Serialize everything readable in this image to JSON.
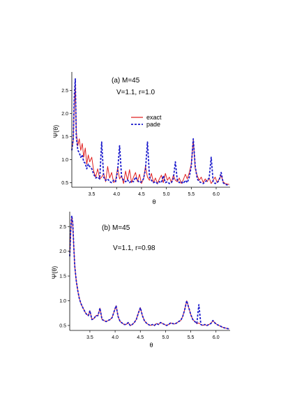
{
  "chart_data": [
    {
      "type": "line",
      "annotations": [
        "(a) M=45",
        "V=1.1, r=1.0"
      ],
      "xlabel": "θ",
      "ylabel": "Ψ(θ)",
      "xlim": [
        3.1,
        6.28
      ],
      "ylim": [
        0.4,
        2.9
      ],
      "xticks": [
        3.5,
        4.0,
        4.5,
        5.0,
        5.5,
        6.0
      ],
      "xtick_labels": [
        "3.5",
        "4.0",
        "4.5",
        "5.0",
        "5.5",
        "6.0"
      ],
      "yticks": [
        0.5,
        1.0,
        1.5,
        2.0,
        2.5
      ],
      "ytick_labels": [
        "0.5",
        "1.0",
        "1.5",
        "2.0",
        "2.5"
      ],
      "legend": "upper right",
      "series": [
        {
          "name": "exact",
          "color": "#e02020",
          "style": "solid",
          "x": [
            3.1,
            3.13,
            3.15,
            3.17,
            3.19,
            3.22,
            3.25,
            3.28,
            3.31,
            3.34,
            3.37,
            3.4,
            3.43,
            3.46,
            3.5,
            3.54,
            3.58,
            3.62,
            3.66,
            3.7,
            3.74,
            3.78,
            3.82,
            3.86,
            3.9,
            3.94,
            3.98,
            4.02,
            4.06,
            4.1,
            4.14,
            4.18,
            4.22,
            4.26,
            4.3,
            4.34,
            4.38,
            4.42,
            4.46,
            4.5,
            4.54,
            4.58,
            4.62,
            4.66,
            4.7,
            4.74,
            4.78,
            4.82,
            4.86,
            4.9,
            4.94,
            4.98,
            5.02,
            5.06,
            5.1,
            5.14,
            5.18,
            5.22,
            5.26,
            5.3,
            5.34,
            5.38,
            5.42,
            5.46,
            5.5,
            5.54,
            5.58,
            5.62,
            5.66,
            5.7,
            5.74,
            5.78,
            5.82,
            5.86,
            5.9,
            5.94,
            5.98,
            6.02,
            6.06,
            6.1,
            6.14,
            6.18,
            6.22,
            6.26
          ],
          "y": [
            1.25,
            1.4,
            2.2,
            2.6,
            1.6,
            1.3,
            1.45,
            1.2,
            1.35,
            1.05,
            1.25,
            0.9,
            1.1,
            0.95,
            1.05,
            0.75,
            0.62,
            0.8,
            0.58,
            0.62,
            0.7,
            0.52,
            0.85,
            0.6,
            0.72,
            0.5,
            0.55,
            0.82,
            0.58,
            0.65,
            0.48,
            0.75,
            0.55,
            0.78,
            0.5,
            0.62,
            0.72,
            0.52,
            0.68,
            0.48,
            0.58,
            0.85,
            0.62,
            0.55,
            0.7,
            0.5,
            0.6,
            0.48,
            0.58,
            0.66,
            0.5,
            0.7,
            0.55,
            0.62,
            0.5,
            0.66,
            0.55,
            0.52,
            0.6,
            0.48,
            0.56,
            0.68,
            0.58,
            0.72,
            0.9,
            1.42,
            0.8,
            0.65,
            0.55,
            0.62,
            0.5,
            0.58,
            0.52,
            0.6,
            0.48,
            0.55,
            0.62,
            0.5,
            0.58,
            0.65,
            0.52,
            0.48,
            0.47,
            0.46
          ]
        },
        {
          "name": "pade",
          "color": "#1a1acc",
          "style": "dashed",
          "x": [
            3.1,
            3.13,
            3.15,
            3.17,
            3.19,
            3.22,
            3.25,
            3.28,
            3.31,
            3.34,
            3.37,
            3.4,
            3.43,
            3.46,
            3.5,
            3.54,
            3.58,
            3.62,
            3.66,
            3.7,
            3.74,
            3.78,
            3.82,
            3.86,
            3.9,
            3.94,
            3.98,
            4.02,
            4.06,
            4.1,
            4.14,
            4.18,
            4.22,
            4.26,
            4.3,
            4.34,
            4.38,
            4.42,
            4.46,
            4.5,
            4.54,
            4.58,
            4.62,
            4.66,
            4.7,
            4.74,
            4.78,
            4.82,
            4.86,
            4.9,
            4.94,
            4.98,
            5.02,
            5.06,
            5.1,
            5.14,
            5.18,
            5.22,
            5.26,
            5.3,
            5.34,
            5.38,
            5.42,
            5.46,
            5.5,
            5.54,
            5.58,
            5.62,
            5.66,
            5.7,
            5.74,
            5.78,
            5.82,
            5.86,
            5.9,
            5.94,
            5.98,
            6.02,
            6.06,
            6.1,
            6.14,
            6.18,
            6.22,
            6.26
          ],
          "y": [
            1.2,
            1.45,
            2.4,
            2.75,
            1.5,
            1.2,
            1.15,
            1.05,
            1.1,
            0.95,
            0.92,
            0.8,
            0.9,
            0.85,
            0.8,
            0.68,
            0.6,
            0.62,
            0.58,
            1.38,
            0.62,
            0.55,
            0.58,
            0.52,
            0.5,
            0.55,
            0.52,
            0.75,
            1.3,
            0.62,
            0.55,
            0.52,
            0.56,
            0.5,
            0.54,
            0.52,
            0.62,
            0.55,
            0.5,
            0.52,
            0.58,
            0.78,
            1.38,
            0.62,
            0.55,
            0.5,
            0.52,
            0.48,
            0.52,
            0.5,
            0.65,
            0.5,
            0.52,
            0.48,
            0.5,
            0.58,
            0.95,
            0.55,
            0.5,
            0.52,
            0.48,
            0.55,
            0.5,
            0.62,
            0.85,
            1.45,
            0.85,
            0.58,
            0.52,
            0.5,
            0.48,
            0.52,
            0.55,
            0.6,
            1.05,
            0.52,
            0.48,
            0.5,
            0.55,
            0.72,
            0.5,
            0.46,
            0.45,
            0.44
          ]
        }
      ]
    },
    {
      "type": "line",
      "annotations": [
        "(b) M=45",
        "V=1.1, r=0.98"
      ],
      "xlabel": "θ",
      "ylabel": "Ψ(θ)",
      "xlim": [
        3.1,
        6.28
      ],
      "ylim": [
        0.4,
        2.8
      ],
      "xticks": [
        3.5,
        4.0,
        4.5,
        5.0,
        5.5,
        6.0
      ],
      "xtick_labels": [
        "3.5",
        "4.0",
        "4.5",
        "5.0",
        "5.5",
        "6.0"
      ],
      "yticks": [
        0.5,
        1.0,
        1.5,
        2.0,
        2.5
      ],
      "ytick_labels": [
        "0.5",
        "1.0",
        "1.5",
        "2.0",
        "2.5"
      ],
      "series": [
        {
          "name": "exact",
          "color": "#e02020",
          "style": "solid",
          "x": [
            3.1,
            3.12,
            3.14,
            3.16,
            3.18,
            3.2,
            3.23,
            3.26,
            3.29,
            3.32,
            3.35,
            3.38,
            3.41,
            3.44,
            3.47,
            3.5,
            3.54,
            3.58,
            3.62,
            3.66,
            3.7,
            3.74,
            3.78,
            3.82,
            3.86,
            3.9,
            3.94,
            3.98,
            4.02,
            4.06,
            4.1,
            4.14,
            4.18,
            4.22,
            4.26,
            4.3,
            4.34,
            4.38,
            4.42,
            4.46,
            4.5,
            4.54,
            4.58,
            4.62,
            4.66,
            4.7,
            4.74,
            4.78,
            4.82,
            4.86,
            4.9,
            4.94,
            4.98,
            5.02,
            5.06,
            5.1,
            5.14,
            5.18,
            5.22,
            5.26,
            5.3,
            5.34,
            5.38,
            5.42,
            5.46,
            5.5,
            5.54,
            5.58,
            5.62,
            5.66,
            5.7,
            5.74,
            5.78,
            5.82,
            5.86,
            5.9,
            5.94,
            5.98,
            6.02,
            6.06,
            6.1,
            6.14,
            6.18,
            6.22,
            6.26
          ],
          "y": [
            1.9,
            2.4,
            2.7,
            2.55,
            2.1,
            1.7,
            1.4,
            1.2,
            1.05,
            0.95,
            0.88,
            0.82,
            0.76,
            0.72,
            0.7,
            0.8,
            0.62,
            0.64,
            0.7,
            0.7,
            0.85,
            0.62,
            0.6,
            0.58,
            0.6,
            0.62,
            0.66,
            0.78,
            0.9,
            0.68,
            0.58,
            0.55,
            0.52,
            0.52,
            0.56,
            0.5,
            0.52,
            0.56,
            0.62,
            0.75,
            0.86,
            0.7,
            0.6,
            0.55,
            0.52,
            0.5,
            0.52,
            0.5,
            0.54,
            0.52,
            0.56,
            0.54,
            0.52,
            0.5,
            0.52,
            0.55,
            0.54,
            0.53,
            0.55,
            0.58,
            0.6,
            0.68,
            0.82,
            1.0,
            0.86,
            0.72,
            0.62,
            0.58,
            0.54,
            0.55,
            0.52,
            0.5,
            0.52,
            0.5,
            0.52,
            0.54,
            0.6,
            0.55,
            0.52,
            0.5,
            0.48,
            0.46,
            0.45,
            0.44,
            0.43
          ]
        },
        {
          "name": "pade",
          "color": "#1a1acc",
          "style": "dashed",
          "x": [
            3.1,
            3.12,
            3.14,
            3.16,
            3.18,
            3.2,
            3.23,
            3.26,
            3.29,
            3.32,
            3.35,
            3.38,
            3.41,
            3.44,
            3.47,
            3.5,
            3.54,
            3.58,
            3.62,
            3.66,
            3.7,
            3.74,
            3.78,
            3.82,
            3.86,
            3.9,
            3.94,
            3.98,
            4.02,
            4.06,
            4.1,
            4.14,
            4.18,
            4.22,
            4.26,
            4.3,
            4.34,
            4.38,
            4.42,
            4.46,
            4.5,
            4.54,
            4.58,
            4.62,
            4.66,
            4.7,
            4.74,
            4.78,
            4.82,
            4.86,
            4.9,
            4.94,
            4.98,
            5.02,
            5.06,
            5.1,
            5.14,
            5.18,
            5.22,
            5.26,
            5.3,
            5.34,
            5.38,
            5.42,
            5.46,
            5.5,
            5.54,
            5.58,
            5.62,
            5.66,
            5.7,
            5.74,
            5.78,
            5.82,
            5.86,
            5.9,
            5.94,
            5.98,
            6.02,
            6.06,
            6.1,
            6.14,
            6.18,
            6.22,
            6.26
          ],
          "y": [
            1.9,
            2.4,
            2.72,
            2.58,
            2.1,
            1.7,
            1.4,
            1.2,
            1.05,
            0.95,
            0.88,
            0.82,
            0.76,
            0.72,
            0.7,
            0.8,
            0.62,
            0.64,
            0.7,
            0.7,
            0.85,
            0.62,
            0.6,
            0.58,
            0.6,
            0.62,
            0.66,
            0.78,
            0.9,
            0.68,
            0.58,
            0.55,
            0.52,
            0.52,
            0.56,
            0.5,
            0.52,
            0.56,
            0.62,
            0.75,
            0.86,
            0.7,
            0.6,
            0.55,
            0.52,
            0.5,
            0.52,
            0.5,
            0.54,
            0.52,
            0.56,
            0.54,
            0.52,
            0.5,
            0.52,
            0.55,
            0.54,
            0.53,
            0.55,
            0.58,
            0.6,
            0.68,
            0.82,
            1.0,
            0.86,
            0.72,
            0.62,
            0.58,
            0.54,
            0.92,
            0.52,
            0.5,
            0.52,
            0.5,
            0.52,
            0.54,
            0.6,
            0.55,
            0.52,
            0.5,
            0.48,
            0.46,
            0.45,
            0.44,
            0.43
          ]
        }
      ]
    }
  ]
}
